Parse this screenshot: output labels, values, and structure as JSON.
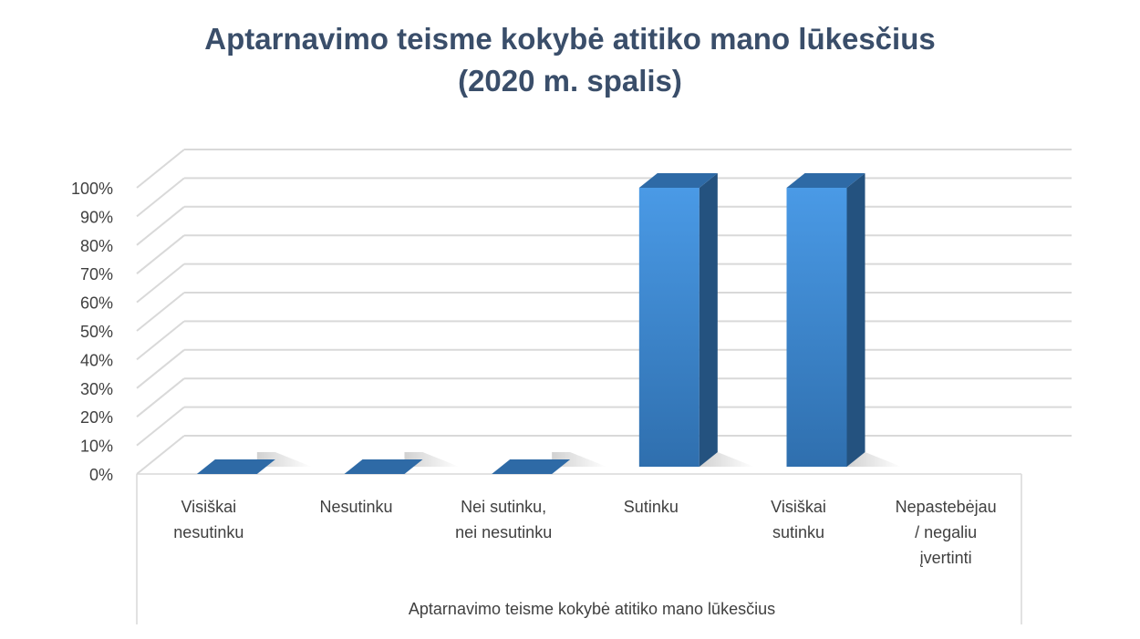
{
  "chart_data": {
    "type": "bar",
    "title_lines": [
      "Aptarnavimo teisme kokybė atitiko mano lūkesčius",
      "(2020 m. spalis)"
    ],
    "categories": [
      [
        "Visiškai",
        "nesutinku"
      ],
      [
        "Nesutinku"
      ],
      [
        "Nei sutinku,",
        "nei nesutinku"
      ],
      [
        "Sutinku"
      ],
      [
        "Visiškai",
        "sutinku"
      ],
      [
        "Nepastebėjau",
        "/ negaliu",
        "įvertinti"
      ]
    ],
    "values": [
      0,
      0,
      0,
      100,
      100,
      null
    ],
    "yticks": [
      "0%",
      "10%",
      "20%",
      "30%",
      "40%",
      "50%",
      "60%",
      "70%",
      "80%",
      "90%",
      "100%"
    ],
    "ylim": [
      0,
      100
    ],
    "xlabel": "Aptarnavimo teisme kokybė atitiko mano lūkesčius",
    "ylabel": "",
    "grid": true,
    "legend": "none",
    "style": "3d-column",
    "colors": {
      "bar_front": "#3f8fd8",
      "bar_side": "#24527f",
      "bar_top": "#2e6aa6",
      "grid": "#d9d9d9",
      "title": "#3a4e6a"
    }
  }
}
